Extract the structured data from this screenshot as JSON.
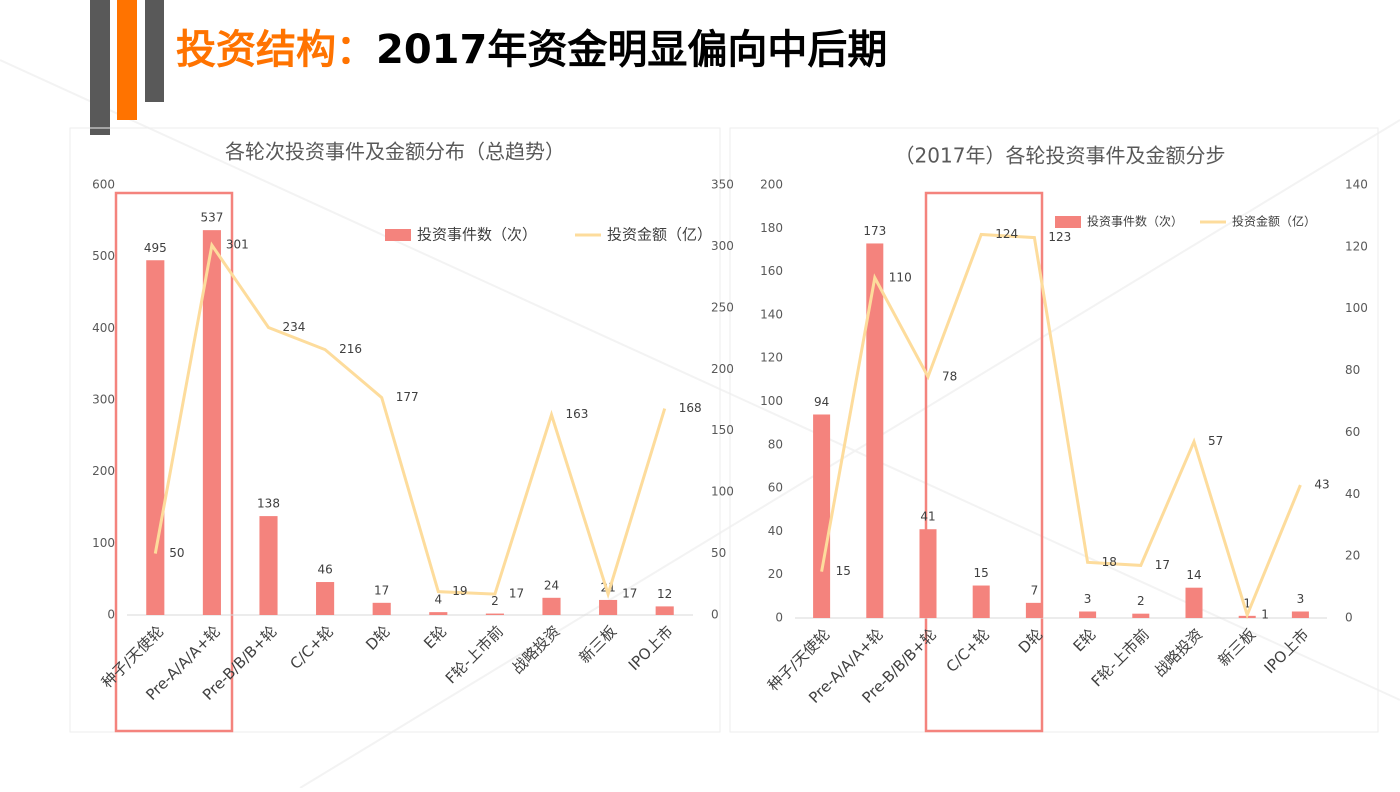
{
  "slide": {
    "title_lead": "投资结构：",
    "title": "2017年资金明显偏向中后期"
  },
  "chart_data": [
    {
      "type": "combo",
      "title": "各轮次投资事件及金额分布（总趋势）",
      "categories": [
        "种子/天使轮",
        "Pre-A/A/A+轮",
        "Pre-B/B/B+轮",
        "C/C+轮",
        "D轮",
        "E轮",
        "F轮-上市前",
        "战略投资",
        "新三板",
        "IPO上市"
      ],
      "series": [
        {
          "name": "投资事件数（次）",
          "type": "bar",
          "color": "#f4837d",
          "values": [
            495,
            537,
            138,
            46,
            17,
            4,
            2,
            24,
            21,
            12
          ]
        },
        {
          "name": "投资金额（亿）",
          "type": "line",
          "axis": "y2",
          "color": "#fddc9c",
          "values": [
            50,
            301,
            234,
            216,
            177,
            19,
            17,
            163,
            17,
            168
          ]
        }
      ],
      "ylim": [
        0,
        600
      ],
      "yticks": [
        0,
        100,
        200,
        300,
        400,
        500,
        600
      ],
      "y2lim": [
        0,
        350
      ],
      "y2ticks": [
        0,
        50,
        100,
        150,
        200,
        250,
        300,
        350
      ],
      "grid": false,
      "legend": "top-right"
    },
    {
      "type": "combo",
      "title": "（2017年）各轮投资事件及金额分步",
      "categories": [
        "种子/天使轮",
        "Pre-A/A/A+轮",
        "Pre-B/B/B+轮",
        "C/C+轮",
        "D轮",
        "E轮",
        "F轮-上市前",
        "战略投资",
        "新三板",
        "IPO上市"
      ],
      "series": [
        {
          "name": "投资事件数（次）",
          "type": "bar",
          "color": "#f4837d",
          "values": [
            94,
            173,
            41,
            15,
            7,
            3,
            2,
            14,
            1,
            3
          ]
        },
        {
          "name": "投资金额（亿）",
          "type": "line",
          "axis": "y2",
          "color": "#fddc9c",
          "values": [
            15,
            110,
            78,
            124,
            123,
            18,
            17,
            57,
            1,
            43
          ]
        }
      ],
      "ylim": [
        0,
        200
      ],
      "yticks": [
        0,
        20,
        40,
        60,
        80,
        100,
        120,
        140,
        160,
        180,
        200
      ],
      "y2lim": [
        0,
        140
      ],
      "y2ticks": [
        0,
        20,
        40,
        60,
        80,
        100,
        120,
        140
      ],
      "grid": false,
      "legend": "top-right"
    }
  ]
}
